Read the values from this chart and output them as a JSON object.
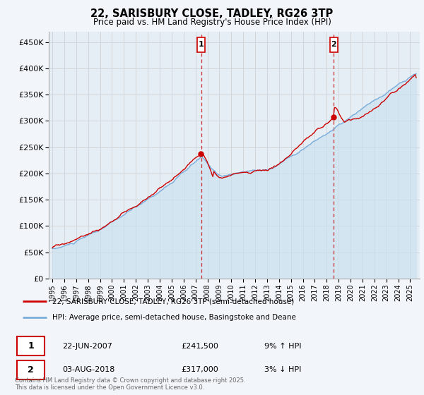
{
  "title_line1": "22, SARISBURY CLOSE, TADLEY, RG26 3TP",
  "title_line2": "Price paid vs. HM Land Registry's House Price Index (HPI)",
  "ylabel_ticks": [
    "£0",
    "£50K",
    "£100K",
    "£150K",
    "£200K",
    "£250K",
    "£300K",
    "£350K",
    "£400K",
    "£450K"
  ],
  "ytick_vals": [
    0,
    50000,
    100000,
    150000,
    200000,
    250000,
    300000,
    350000,
    400000,
    450000
  ],
  "ylim": [
    0,
    470000
  ],
  "xlim_start": 1994.7,
  "xlim_end": 2025.8,
  "xtick_years": [
    1995,
    1996,
    1997,
    1998,
    1999,
    2000,
    2001,
    2002,
    2003,
    2004,
    2005,
    2006,
    2007,
    2008,
    2009,
    2010,
    2011,
    2012,
    2013,
    2014,
    2015,
    2016,
    2017,
    2018,
    2019,
    2020,
    2021,
    2022,
    2023,
    2024,
    2025
  ],
  "red_line_color": "#cc0000",
  "blue_line_color": "#7aadda",
  "blue_fill_color": "#c8dff0",
  "grid_color": "#cccccc",
  "bg_color": "#f2f6fa",
  "plot_bg_color": "#e6eef5",
  "marker1_x": 2007.47,
  "marker1_y": 241500,
  "marker2_x": 2018.58,
  "marker2_y": 317000,
  "marker1_label": "1",
  "marker2_label": "2",
  "vline_color": "#cc0000",
  "annotation_box_color": "#cc0000",
  "legend_label_red": "22, SARISBURY CLOSE, TADLEY, RG26 3TP (semi-detached house)",
  "legend_label_blue": "HPI: Average price, semi-detached house, Basingstoke and Deane",
  "footnote_line1": "Contains HM Land Registry data © Crown copyright and database right 2025.",
  "footnote_line2": "This data is licensed under the Open Government Licence v3.0.",
  "table_row1": [
    "1",
    "22-JUN-2007",
    "£241,500",
    "9% ↑ HPI"
  ],
  "table_row2": [
    "2",
    "03-AUG-2018",
    "£317,000",
    "3% ↓ HPI"
  ]
}
